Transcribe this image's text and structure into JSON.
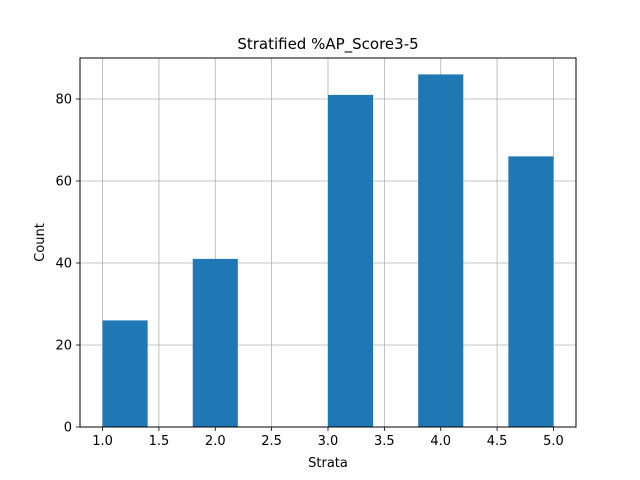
{
  "chart_data": {
    "type": "bar",
    "title": "Stratified %AP_Score3-5",
    "xlabel": "Strata",
    "ylabel": "Count",
    "xlim": [
      0.8,
      5.2
    ],
    "ylim": [
      0,
      90
    ],
    "xticks": [
      1.0,
      1.5,
      2.0,
      2.5,
      3.0,
      3.5,
      4.0,
      4.5,
      5.0
    ],
    "xtick_labels": [
      "1.0",
      "1.5",
      "2.0",
      "2.5",
      "3.0",
      "3.5",
      "4.0",
      "4.5",
      "5.0"
    ],
    "yticks": [
      0,
      20,
      40,
      60,
      80
    ],
    "ytick_labels": [
      "0",
      "20",
      "40",
      "60",
      "80"
    ],
    "grid": true,
    "bar_color": "#1f77b4",
    "bins": [
      {
        "x0": 1.0,
        "x1": 1.4,
        "value": 26
      },
      {
        "x0": 1.4,
        "x1": 1.8,
        "value": 0
      },
      {
        "x0": 1.8,
        "x1": 2.2,
        "value": 41
      },
      {
        "x0": 2.2,
        "x1": 2.6,
        "value": 0
      },
      {
        "x0": 2.6,
        "x1": 3.0,
        "value": 0
      },
      {
        "x0": 3.0,
        "x1": 3.4,
        "value": 81
      },
      {
        "x0": 3.4,
        "x1": 3.8,
        "value": 0
      },
      {
        "x0": 3.8,
        "x1": 4.2,
        "value": 86
      },
      {
        "x0": 4.2,
        "x1": 4.6,
        "value": 0
      },
      {
        "x0": 4.6,
        "x1": 5.0,
        "value": 66
      }
    ]
  }
}
